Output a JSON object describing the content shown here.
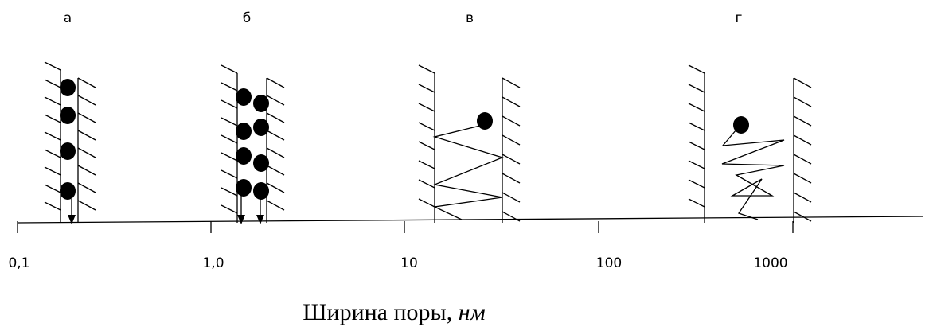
{
  "panels": {
    "labels": [
      "а",
      "б",
      "в",
      "г"
    ]
  },
  "axis": {
    "ticks": [
      "0,1",
      "1,0",
      "10",
      "100",
      "1000"
    ],
    "title": "Ширина поры, ",
    "unit": "нм"
  }
}
